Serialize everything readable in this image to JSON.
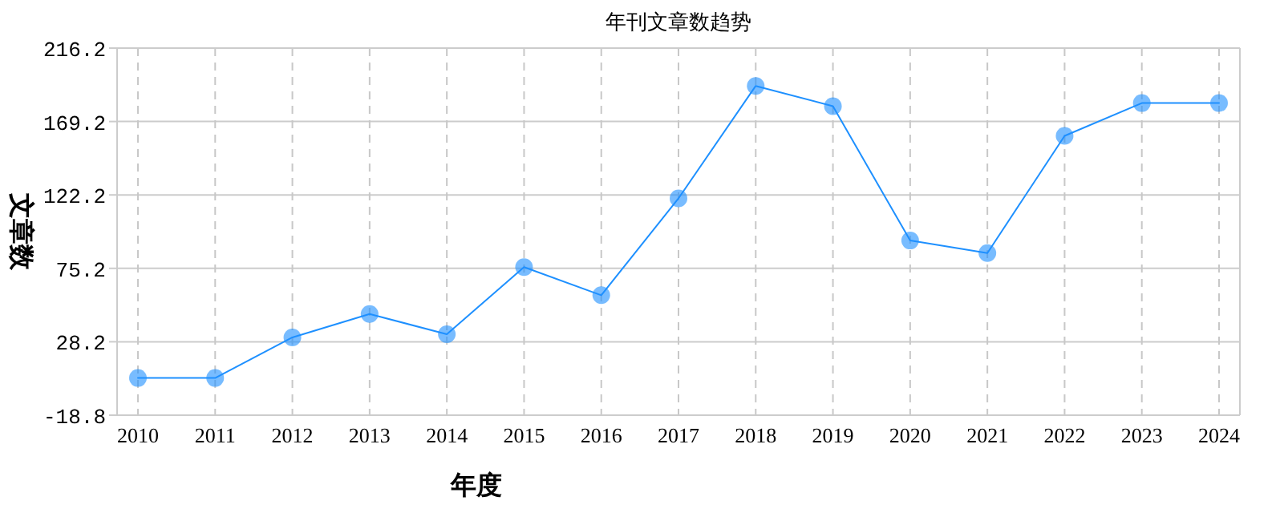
{
  "chart_data": {
    "type": "line",
    "title": "年刊文章数趋势",
    "xlabel": "年度",
    "ylabel": "文章数",
    "categories": [
      "2010",
      "2011",
      "2012",
      "2013",
      "2014",
      "2015",
      "2016",
      "2017",
      "2018",
      "2019",
      "2020",
      "2021",
      "2022",
      "2023",
      "2024"
    ],
    "series": [
      {
        "color": "#1e90ff",
        "values": [
          5,
          5,
          31,
          46,
          33,
          76,
          58,
          120,
          192,
          179,
          93,
          85,
          160,
          181,
          181
        ]
      }
    ],
    "ylim": [
      -18.8,
      216.2
    ],
    "yticks": [
      -18.8,
      28.2,
      75.2,
      122.2,
      169.2,
      216.2
    ],
    "grid": true,
    "marker": "circle",
    "line_style": "solid"
  }
}
